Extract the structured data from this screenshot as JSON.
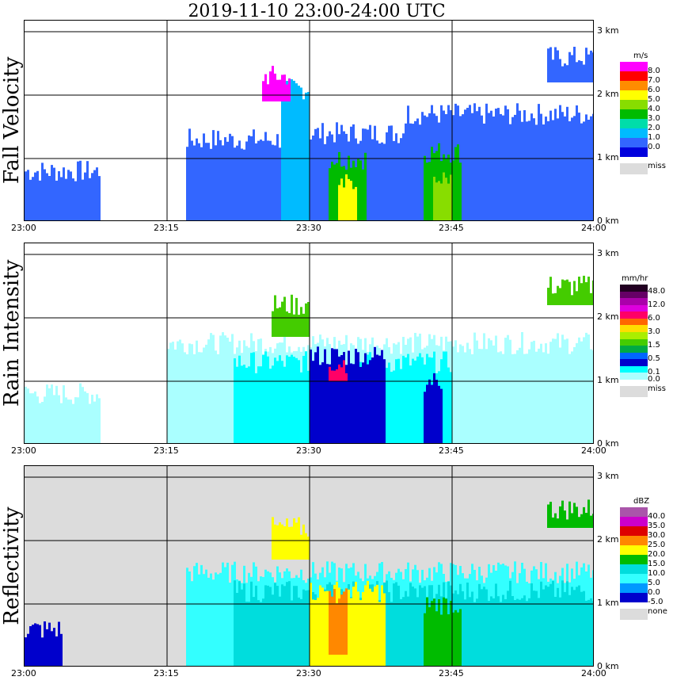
{
  "title": "2019-11-10   23:00-24:00 UTC",
  "x_ticks": [
    "23:00",
    "23:15",
    "23:30",
    "23:45",
    "24:00"
  ],
  "y_ticks": [
    "3 km",
    "2 km",
    "1 km",
    "0 km"
  ],
  "colors": {
    "missing_gray": "#dcdcdc",
    "background": "#ffffff"
  },
  "chart_data": [
    {
      "type": "heatmap",
      "title": "Fall Velocity",
      "unit": "m/s",
      "xlim": [
        "23:00",
        "24:00"
      ],
      "ylim_km": [
        0,
        3
      ],
      "grid": true,
      "missing_label": "miss",
      "levels": [
        {
          "label": "8.0",
          "color": "#ff00ff"
        },
        {
          "label": "7.0",
          "color": "#ff0000"
        },
        {
          "label": "6.0",
          "color": "#ff8c00"
        },
        {
          "label": "5.0",
          "color": "#ffff00"
        },
        {
          "label": "4.0",
          "color": "#88dd00"
        },
        {
          "label": "3.0",
          "color": "#00bb00"
        },
        {
          "label": "2.0",
          "color": "#00ddaa"
        },
        {
          "label": "1.0",
          "color": "#00bbff"
        },
        {
          "label": "0.0",
          "color": "#3366ff"
        },
        {
          "label": "",
          "color": "#0000dd"
        }
      ],
      "echo_regions": [
        {
          "t0": 0,
          "t1": 8,
          "h0": 0,
          "h1": 0.8,
          "level": 8
        },
        {
          "t0": 17,
          "t1": 27,
          "h0": 0,
          "h1": 1.3,
          "level": 8
        },
        {
          "t0": 27,
          "t1": 30,
          "h0": 0,
          "h1": 2.1,
          "level": 7
        },
        {
          "t0": 30,
          "t1": 40,
          "h0": 0,
          "h1": 1.4,
          "level": 8
        },
        {
          "t0": 32,
          "t1": 36,
          "h0": 0,
          "h1": 1.0,
          "level": 5
        },
        {
          "t0": 33,
          "t1": 35,
          "h0": 0,
          "h1": 0.6,
          "level": 3
        },
        {
          "t0": 40,
          "t1": 60,
          "h0": 0,
          "h1": 1.7,
          "level": 8
        },
        {
          "t0": 42,
          "t1": 46,
          "h0": 0,
          "h1": 1.1,
          "level": 5
        },
        {
          "t0": 43,
          "t1": 45,
          "h0": 0,
          "h1": 0.7,
          "level": 4
        },
        {
          "t0": 55,
          "t1": 60,
          "h0": 2.2,
          "h1": 2.6,
          "level": 8
        },
        {
          "t0": 25,
          "t1": 28,
          "h0": 1.9,
          "h1": 2.3,
          "level": 0
        }
      ]
    },
    {
      "type": "heatmap",
      "title": "Rain Intensity",
      "unit": "mm/hr",
      "xlim": [
        "23:00",
        "24:00"
      ],
      "ylim_km": [
        0,
        3
      ],
      "grid": true,
      "missing_label": "miss",
      "levels": [
        {
          "label": "48.0",
          "color": "#220022"
        },
        {
          "label": "",
          "color": "#660066"
        },
        {
          "label": "12.0",
          "color": "#aa00aa"
        },
        {
          "label": "",
          "color": "#dd00dd"
        },
        {
          "label": "6.0",
          "color": "#ff0066"
        },
        {
          "label": "",
          "color": "#ff6600"
        },
        {
          "label": "3.0",
          "color": "#ffdd00"
        },
        {
          "label": "",
          "color": "#aaee00"
        },
        {
          "label": "1.5",
          "color": "#44cc00"
        },
        {
          "label": "",
          "color": "#00aa44"
        },
        {
          "label": "0.5",
          "color": "#0066ff"
        },
        {
          "label": "",
          "color": "#0000cc"
        },
        {
          "label": "0.1",
          "color": "#00ffff"
        },
        {
          "label": "0.0",
          "color": "#aaffff"
        }
      ],
      "echo_regions": [
        {
          "t0": 0,
          "t1": 8,
          "h0": 0,
          "h1": 0.8,
          "level": 13
        },
        {
          "t0": 15,
          "t1": 60,
          "h0": 0,
          "h1": 1.6,
          "level": 13
        },
        {
          "t0": 22,
          "t1": 45,
          "h0": 0,
          "h1": 1.3,
          "level": 12
        },
        {
          "t0": 30,
          "t1": 38,
          "h0": 0,
          "h1": 1.4,
          "level": 11
        },
        {
          "t0": 32,
          "t1": 34,
          "h0": 1.0,
          "h1": 1.3,
          "level": 4
        },
        {
          "t0": 26,
          "t1": 30,
          "h0": 1.7,
          "h1": 2.2,
          "level": 8
        },
        {
          "t0": 55,
          "t1": 60,
          "h0": 2.2,
          "h1": 2.5,
          "level": 8
        },
        {
          "t0": 42,
          "t1": 44,
          "h0": 0,
          "h1": 1.0,
          "level": 11
        }
      ]
    },
    {
      "type": "heatmap",
      "title": "Reflectivity",
      "unit": "dBZ",
      "xlim": [
        "23:00",
        "24:00"
      ],
      "ylim_km": [
        0,
        3
      ],
      "grid": true,
      "missing_label": "none",
      "levels": [
        {
          "label": "40.0",
          "color": "#aa55aa"
        },
        {
          "label": "35.0",
          "color": "#cc00cc"
        },
        {
          "label": "30.0",
          "color": "#dd0000"
        },
        {
          "label": "25.0",
          "color": "#ff8800"
        },
        {
          "label": "20.0",
          "color": "#ffff00"
        },
        {
          "label": "15.0",
          "color": "#00bb00"
        },
        {
          "label": "10.0",
          "color": "#00dddd"
        },
        {
          "label": "5.0",
          "color": "#33ffff"
        },
        {
          "label": "0.0",
          "color": "#0099ff"
        },
        {
          "label": "-5.0",
          "color": "#0000cc"
        }
      ],
      "echo_regions": [
        {
          "t0": 0,
          "t1": 4,
          "h0": 0,
          "h1": 0.6,
          "level": 9
        },
        {
          "t0": 17,
          "t1": 60,
          "h0": 0,
          "h1": 1.5,
          "level": 7
        },
        {
          "t0": 22,
          "t1": 60,
          "h0": 0,
          "h1": 1.2,
          "level": 6
        },
        {
          "t0": 30,
          "t1": 38,
          "h0": 0,
          "h1": 1.2,
          "level": 4
        },
        {
          "t0": 32,
          "t1": 34,
          "h0": 0.2,
          "h1": 1.1,
          "level": 3
        },
        {
          "t0": 42,
          "t1": 46,
          "h0": 0,
          "h1": 1.0,
          "level": 5
        },
        {
          "t0": 26,
          "t1": 30,
          "h0": 1.7,
          "h1": 2.2,
          "level": 4
        },
        {
          "t0": 55,
          "t1": 60,
          "h0": 2.2,
          "h1": 2.5,
          "level": 5
        }
      ]
    }
  ]
}
